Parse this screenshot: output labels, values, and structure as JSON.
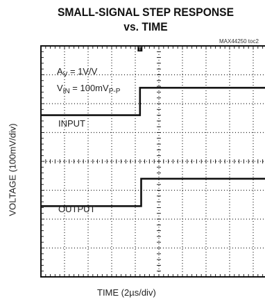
{
  "chart_data": {
    "type": "line",
    "title_line1": "SMALL-SIGNAL STEP RESPONSE",
    "title_line2": "vs. TIME",
    "figure_id": "MAX44250 toc2",
    "xlabel": "TIME (2µs/div)",
    "ylabel": "VOLTAGE (100mV/div)",
    "annotations": {
      "gain": {
        "prefix": "A",
        "sub": "V",
        "suffix": " = 1V/V"
      },
      "vin": {
        "prefix": "V",
        "sub1": "IN",
        "mid": " = 100mV",
        "sub2": "P-P"
      }
    },
    "x_divisions": 10,
    "y_divisions": 8,
    "x_range_div": [
      0,
      10
    ],
    "y_range_div": [
      0,
      8
    ],
    "trigger_div": 4.2,
    "series": [
      {
        "name": "INPUT",
        "points_div": [
          [
            0,
            5.6
          ],
          [
            4.2,
            5.6
          ],
          [
            4.2,
            6.55
          ],
          [
            10,
            6.55
          ]
        ]
      },
      {
        "name": "OUTPUT",
        "points_div": [
          [
            0,
            2.45
          ],
          [
            4.25,
            2.45
          ],
          [
            4.25,
            3.4
          ],
          [
            10,
            3.4
          ]
        ]
      }
    ],
    "colors": {
      "trace": "#111111",
      "grid": "#222222",
      "frame": "#111111"
    }
  }
}
